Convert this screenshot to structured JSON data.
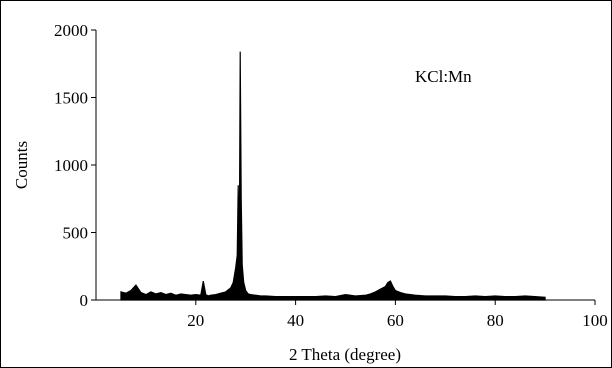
{
  "chart_data": {
    "type": "line",
    "title": "",
    "annotation": "KCl:Mn",
    "xlabel": "2 Theta (degree)",
    "ylabel": "Counts",
    "xlim": [
      0,
      100
    ],
    "ylim": [
      0,
      2000
    ],
    "x_ticks": [
      "20",
      "40",
      "60",
      "80",
      "100"
    ],
    "y_ticks": [
      "0",
      "500",
      "1000",
      "1500",
      "2000"
    ],
    "grid": false,
    "legend": "none",
    "series": [
      {
        "color": "#000000",
        "x": [
          5,
          6,
          7,
          8,
          9,
          10,
          11,
          12,
          13,
          14,
          15,
          16,
          17,
          18,
          19,
          20,
          21,
          21.5,
          22,
          22.5,
          23,
          24,
          25,
          26,
          27,
          27.5,
          28,
          28.3,
          28.5,
          28.7,
          28.9,
          29.1,
          29.3,
          29.6,
          30,
          30.5,
          31,
          32,
          33,
          34,
          36,
          38,
          40,
          42,
          44,
          46,
          48,
          50,
          52,
          54,
          55,
          56,
          57,
          58,
          58.5,
          59,
          59.5,
          60,
          61,
          62,
          63,
          64,
          66,
          68,
          70,
          72,
          74,
          76,
          78,
          80,
          82,
          84,
          86,
          88,
          90
        ],
        "y": [
          60,
          50,
          70,
          110,
          55,
          40,
          60,
          45,
          55,
          40,
          50,
          35,
          45,
          40,
          35,
          40,
          35,
          140,
          40,
          30,
          35,
          40,
          50,
          60,
          90,
          130,
          240,
          330,
          850,
          190,
          1840,
          750,
          260,
          130,
          70,
          45,
          40,
          35,
          30,
          30,
          25,
          25,
          25,
          25,
          25,
          30,
          25,
          40,
          30,
          35,
          45,
          60,
          80,
          100,
          130,
          140,
          100,
          70,
          55,
          45,
          40,
          35,
          30,
          30,
          30,
          25,
          25,
          30,
          25,
          30,
          25,
          25,
          30,
          25,
          20
        ]
      }
    ]
  }
}
